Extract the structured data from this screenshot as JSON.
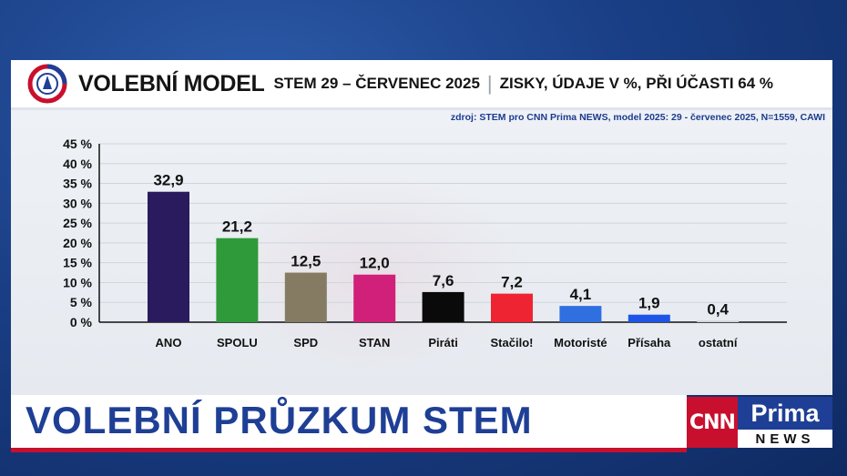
{
  "header": {
    "title": "VOLEBNÍ MODEL",
    "subtitle": "STEM 29 – ČERVENEC 2025",
    "separator": "|",
    "subtitle2": "ZISKY, ÚDAJE V %, PŘI ÚČASTI 64 %"
  },
  "source": "zdroj: STEM pro CNN Prima NEWS, model 2025: 29 - červenec 2025, N=1559, CAWI",
  "banner": {
    "text": "VOLEBNÍ PRŮZKUM STEM"
  },
  "channel": {
    "cnn": "CNN",
    "prima": "Prima",
    "news": "NEWS"
  },
  "colors": {
    "brand_blue": "#1e3f95",
    "brand_red": "#c8102e"
  },
  "chart_data": {
    "type": "bar",
    "categories": [
      "ANO",
      "SPOLU",
      "SPD",
      "STAN",
      "Piráti",
      "Stačilo!",
      "Motoristé",
      "Přísaha",
      "ostatní"
    ],
    "values": [
      32.9,
      21.2,
      12.5,
      12.0,
      7.6,
      7.2,
      4.1,
      1.9,
      0.4
    ],
    "value_labels": [
      "32,9",
      "21,2",
      "12,5",
      "12,0",
      "7,6",
      "7,2",
      "4,1",
      "1,9",
      "0,4"
    ],
    "colors": [
      "#2a1a5e",
      "#2f9a3a",
      "#857b63",
      "#d0207a",
      "#0a0a0a",
      "#ee2432",
      "#2f6fe0",
      "#1e55e6",
      "#cfd5de"
    ],
    "ylim": [
      0,
      45
    ],
    "yticks": [
      0,
      5,
      10,
      15,
      20,
      25,
      30,
      35,
      40,
      45
    ],
    "ytick_labels": [
      "0 %",
      "5 %",
      "10 %",
      "15 %",
      "20 %",
      "25 %",
      "30 %",
      "35 %",
      "40 %",
      "45 %"
    ],
    "grid": true,
    "xlabel": "",
    "ylabel": ""
  }
}
